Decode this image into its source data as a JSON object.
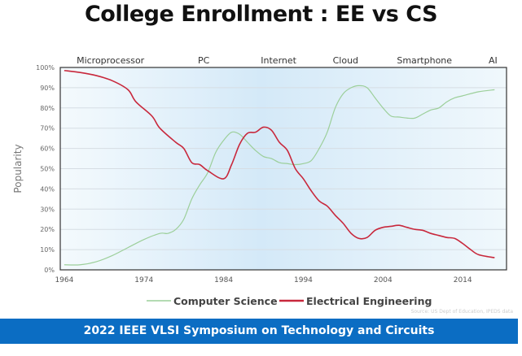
{
  "title": "College Enrollment : EE vs CS",
  "source": "Source: US Dept of Education, IPEDS data",
  "banner": "2022 IEEE VLSI Symposium on Technology and Circuits",
  "chart_data": {
    "type": "line",
    "title": "College Enrollment : EE vs CS",
    "xlabel": "",
    "ylabel": "Popularity",
    "xlim": [
      1963.5,
      2019.5
    ],
    "ylim": [
      0,
      100
    ],
    "xticks": [
      1964,
      1974,
      1984,
      1994,
      2004,
      2014
    ],
    "yticks": [
      0,
      10,
      20,
      30,
      40,
      50,
      60,
      70,
      80,
      90,
      100
    ],
    "ytick_labels": [
      "0%",
      "10%",
      "20%",
      "30%",
      "40%",
      "50%",
      "60%",
      "70%",
      "80%",
      "90%",
      "100%"
    ],
    "grid": "horizontal",
    "legend_placement": "bottom",
    "annotations": [
      {
        "text": "Microprocessor",
        "year": 1969.8
      },
      {
        "text": "PC",
        "year": 1981.5
      },
      {
        "text": "Internet",
        "year": 1990.9
      },
      {
        "text": "Cloud",
        "year": 1999.3
      },
      {
        "text": "Smartphone",
        "year": 2009.2
      },
      {
        "text": "AI",
        "year": 2017.8
      }
    ],
    "series": [
      {
        "name": "Computer Science",
        "color": "#9ccf9a",
        "x": [
          1964,
          1966,
          1968,
          1970,
          1972,
          1974,
          1976,
          1977,
          1978,
          1979,
          1980,
          1981,
          1982,
          1983,
          1984,
          1985,
          1986,
          1987,
          1988,
          1989,
          1990,
          1991,
          1992,
          1993,
          1994,
          1995,
          1996,
          1997,
          1998,
          1999,
          2000,
          2001,
          2002,
          2003,
          2004,
          2005,
          2006,
          2007,
          2008,
          2009,
          2010,
          2011,
          2012,
          2013,
          2014,
          2016,
          2018
        ],
        "values": [
          2.5,
          2.5,
          4,
          7,
          11,
          15,
          18,
          18,
          20,
          25,
          35,
          42,
          48,
          58,
          64,
          68,
          67,
          63,
          59,
          56,
          55,
          53,
          52.5,
          52,
          52.5,
          54,
          60,
          68,
          80,
          87,
          90,
          91,
          90,
          85,
          80,
          76,
          75.5,
          75,
          75,
          77,
          79,
          80,
          83,
          85,
          86,
          88,
          89
        ]
      },
      {
        "name": "Electrical Engineering",
        "color": "#c8283c",
        "x": [
          1964,
          1966,
          1968,
          1970,
          1972,
          1973,
          1975,
          1976,
          1978,
          1979,
          1980,
          1981,
          1982,
          1984,
          1985,
          1986,
          1987,
          1988,
          1989,
          1990,
          1991,
          1992,
          1993,
          1994,
          1995,
          1996,
          1997,
          1998,
          1999,
          2000,
          2001,
          2002,
          2003,
          2004,
          2005,
          2006,
          2007,
          2008,
          2009,
          2010,
          2011,
          2012,
          2013,
          2014,
          2015,
          2016,
          2018
        ],
        "values": [
          98.5,
          97.5,
          96,
          93.5,
          89,
          83,
          76,
          70,
          63,
          60,
          53,
          52,
          49,
          45,
          52,
          62,
          67.5,
          68,
          70.5,
          69,
          63,
          59,
          50,
          45,
          39,
          34,
          31.5,
          27,
          23,
          18,
          15.5,
          16,
          19.5,
          21,
          21.5,
          22,
          21,
          20,
          19.5,
          18,
          17,
          16,
          15.5,
          13,
          10,
          7.5,
          6
        ]
      }
    ]
  }
}
